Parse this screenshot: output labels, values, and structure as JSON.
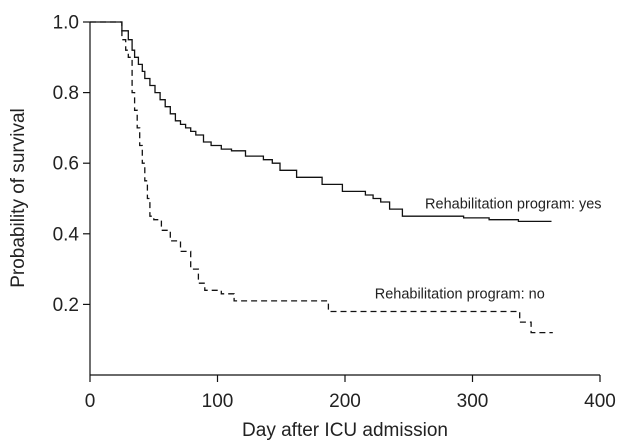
{
  "chart_data": {
    "type": "line",
    "xlabel": "Day after ICU admission",
    "ylabel": "Probability of survival",
    "xlim": [
      0,
      400
    ],
    "ylim": [
      0,
      1.0
    ],
    "x_ticks": [
      0,
      100,
      200,
      300,
      400
    ],
    "y_ticks": [
      0.2,
      0.4,
      0.6,
      0.8,
      1.0
    ],
    "x_tick_labels": [
      "0",
      "100",
      "200",
      "300",
      "400"
    ],
    "y_tick_labels": [
      "0.2",
      "0.4",
      "0.6",
      "0.8",
      "1.0"
    ],
    "grid": false,
    "step": true,
    "series": [
      {
        "name": "Rehabilitation program: yes",
        "line_style": "solid",
        "color": "#111111",
        "x": [
          0,
          25,
          30,
          33,
          35,
          38,
          41,
          43,
          47,
          51,
          55,
          59,
          63,
          67,
          71,
          75,
          79,
          83,
          89,
          95,
          103,
          111,
          122,
          136,
          143,
          149,
          162,
          182,
          198,
          216,
          222,
          228,
          235,
          245,
          263,
          293,
          313,
          336,
          362
        ],
        "y": [
          1.0,
          0.975,
          0.95,
          0.92,
          0.9,
          0.88,
          0.86,
          0.84,
          0.82,
          0.8,
          0.78,
          0.76,
          0.74,
          0.72,
          0.71,
          0.7,
          0.69,
          0.68,
          0.66,
          0.65,
          0.64,
          0.635,
          0.62,
          0.61,
          0.6,
          0.58,
          0.56,
          0.54,
          0.52,
          0.51,
          0.5,
          0.49,
          0.47,
          0.45,
          0.45,
          0.445,
          0.44,
          0.435,
          0.435
        ]
      },
      {
        "name": "Rehabilitation program: no",
        "line_style": "dashed",
        "color": "#111111",
        "x": [
          0,
          25,
          28,
          30,
          33,
          35,
          37,
          39,
          41,
          43,
          45,
          47,
          50,
          56,
          63,
          71,
          79,
          85,
          90,
          103,
          113,
          187,
          337,
          346,
          363
        ],
        "y": [
          1.0,
          0.95,
          0.92,
          0.9,
          0.8,
          0.75,
          0.7,
          0.65,
          0.6,
          0.55,
          0.5,
          0.45,
          0.44,
          0.41,
          0.38,
          0.35,
          0.3,
          0.26,
          0.24,
          0.23,
          0.21,
          0.18,
          0.15,
          0.12,
          0.12
        ]
      }
    ]
  }
}
